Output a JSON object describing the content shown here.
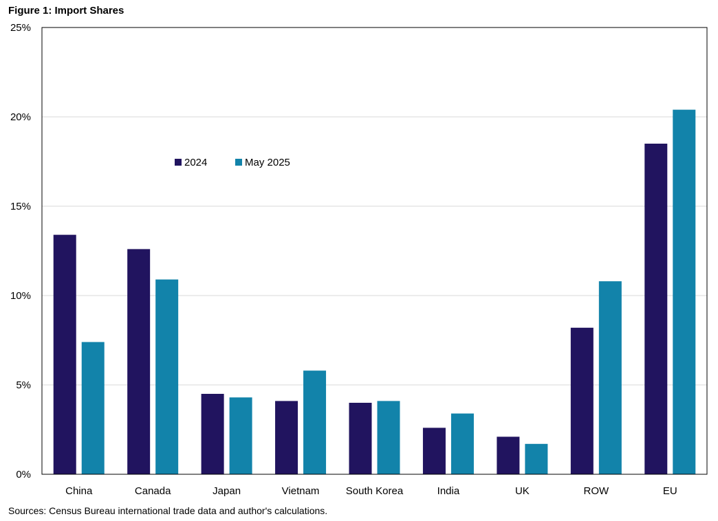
{
  "figure_title": "Figure 1: Import Shares",
  "source_note": "Sources: Census Bureau international trade data and author's calculations.",
  "colors": {
    "series_2024": "#21145f",
    "series_2025": "#1283aa",
    "grid": "#d9d9d9",
    "axis": "#000000"
  },
  "chart_data": {
    "type": "bar",
    "title": "Figure 1: Import Shares",
    "xlabel": "",
    "ylabel": "",
    "categories": [
      "China",
      "Canada",
      "Japan",
      "Vietnam",
      "South Korea",
      "India",
      "UK",
      "ROW",
      "EU"
    ],
    "series": [
      {
        "name": "2024",
        "values": [
          13.4,
          12.6,
          4.5,
          4.1,
          4.0,
          2.6,
          2.1,
          8.2,
          18.5
        ]
      },
      {
        "name": "May 2025",
        "values": [
          7.4,
          10.9,
          4.3,
          5.8,
          4.1,
          3.4,
          1.7,
          10.8,
          20.4
        ]
      }
    ],
    "ylim": [
      0,
      25
    ],
    "yticks": [
      0,
      5,
      10,
      15,
      20,
      25
    ],
    "ytick_labels": [
      "0%",
      "5%",
      "10%",
      "15%",
      "20%",
      "25%"
    ],
    "grid": true,
    "legend_position": "upper-left-inside"
  }
}
